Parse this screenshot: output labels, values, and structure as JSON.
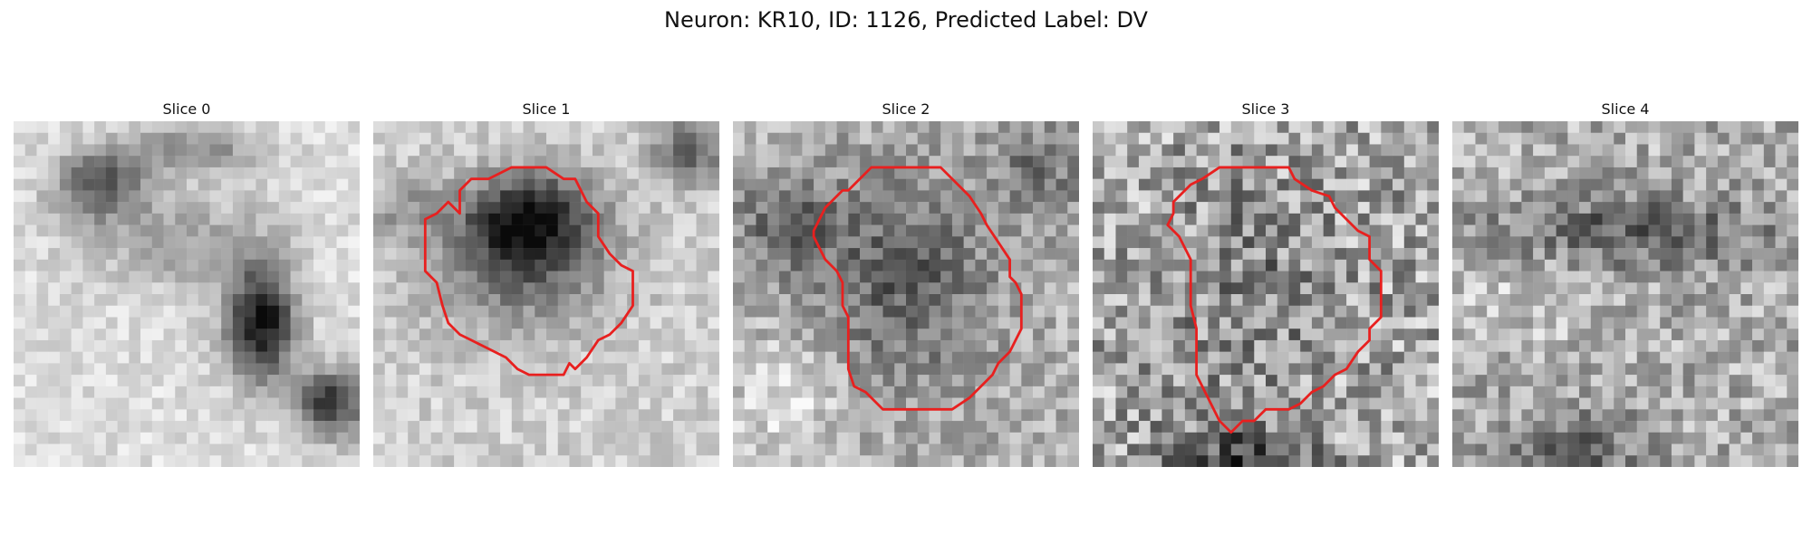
{
  "suptitle": "Neuron: KR10, ID: 1126, Predicted Label: DV",
  "panels": [
    {
      "title": "Slice 0",
      "contour_color": "#e8201f"
    },
    {
      "title": "Slice 1",
      "contour_color": "#e8201f"
    },
    {
      "title": "Slice 2",
      "contour_color": "#e8201f"
    },
    {
      "title": "Slice 3",
      "contour_color": "#e8201f"
    },
    {
      "title": "Slice 4",
      "contour_color": "#e8201f"
    }
  ]
}
